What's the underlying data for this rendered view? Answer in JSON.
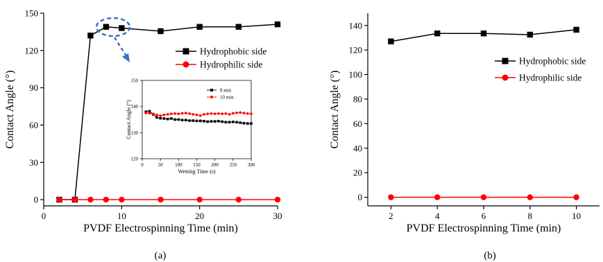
{
  "panel_captions": [
    "(a)",
    "(b)"
  ],
  "colors": {
    "hydrophobic": "#000000",
    "hydrophilic": "#ff0000",
    "annotation": "#3a6fc4"
  },
  "chart_data": [
    {
      "id": "a",
      "type": "line",
      "xlabel": "PVDF Electrospinning Time (min)",
      "ylabel": "Contact Angle (°)",
      "xlim": [
        0,
        30
      ],
      "ylim": [
        -5,
        150
      ],
      "xticks": [
        0,
        10,
        20,
        30
      ],
      "yticks": [
        0,
        30,
        60,
        90,
        120,
        150
      ],
      "grid": false,
      "legend_position": "right",
      "series": [
        {
          "name": "Hydrophobic side",
          "marker": "square",
          "color": "#000000",
          "x": [
            2,
            4,
            6,
            8,
            10,
            15,
            20,
            25,
            30
          ],
          "y": [
            0,
            0,
            132,
            139,
            138,
            135.5,
            139,
            139,
            141
          ]
        },
        {
          "name": "Hydrophilic side",
          "marker": "circle",
          "color": "#ff0000",
          "x": [
            2,
            4,
            6,
            8,
            10,
            15,
            20,
            25,
            30
          ],
          "y": [
            0,
            0,
            0,
            0,
            0,
            0,
            0,
            0,
            0
          ]
        }
      ]
    },
    {
      "id": "a-inset",
      "type": "line",
      "xlabel": "Wetting Time (s)",
      "ylabel": "Contact Angle (°)",
      "xlim": [
        0,
        300
      ],
      "ylim": [
        120,
        150
      ],
      "xticks": [
        0,
        50,
        100,
        150,
        200,
        250,
        300
      ],
      "yticks": [
        120,
        130,
        140,
        150
      ],
      "legend_position": "top-right",
      "series": [
        {
          "name": "8 min",
          "marker": "square",
          "color": "#000000",
          "x": [
            10,
            20,
            30,
            40,
            50,
            60,
            70,
            80,
            90,
            100,
            110,
            120,
            130,
            140,
            150,
            160,
            170,
            180,
            190,
            200,
            210,
            220,
            230,
            240,
            250,
            260,
            270,
            280,
            290,
            300
          ],
          "y": [
            138,
            138.2,
            137,
            135.8,
            135.5,
            135.4,
            135.2,
            135.4,
            135.0,
            135.0,
            134.8,
            134.8,
            134.6,
            134.6,
            134.5,
            134.5,
            134.4,
            134.2,
            134.3,
            134.3,
            134.4,
            134.2,
            134.0,
            134.0,
            134.1,
            134.0,
            133.8,
            133.6,
            133.5,
            133.5
          ]
        },
        {
          "name": "10 min",
          "marker": "circle",
          "color": "#ff0000",
          "x": [
            10,
            20,
            30,
            40,
            50,
            60,
            70,
            80,
            90,
            100,
            110,
            120,
            130,
            140,
            150,
            160,
            170,
            180,
            190,
            200,
            210,
            220,
            230,
            240,
            250,
            260,
            270,
            280,
            290,
            300
          ],
          "y": [
            137.5,
            137.4,
            137.2,
            136.8,
            136.5,
            136.8,
            137.0,
            137.2,
            137.3,
            137.2,
            137.4,
            137.5,
            137.3,
            137.0,
            136.8,
            136.5,
            137.0,
            137.2,
            137.3,
            137.2,
            137.3,
            137.2,
            137.3,
            137.0,
            137.4,
            137.6,
            137.7,
            137.5,
            137.3,
            137.2
          ]
        }
      ]
    },
    {
      "id": "b",
      "type": "line",
      "xlabel": "PVDF Electrospinning Time (min)",
      "ylabel": "Contact Angle (°)",
      "xlim": [
        1,
        11
      ],
      "ylim": [
        -7,
        150
      ],
      "xticks": [
        2,
        4,
        6,
        8,
        10
      ],
      "yticks": [
        0,
        20,
        40,
        60,
        80,
        100,
        120,
        140
      ],
      "grid": false,
      "legend_position": "right",
      "series": [
        {
          "name": "Hydrophobic side",
          "marker": "square",
          "color": "#000000",
          "x": [
            2,
            4,
            6,
            8,
            10
          ],
          "y": [
            127,
            133.5,
            133.5,
            132.5,
            136.5
          ]
        },
        {
          "name": "Hydrophilic side",
          "marker": "circle",
          "color": "#ff0000",
          "x": [
            2,
            4,
            6,
            8,
            10
          ],
          "y": [
            0,
            0,
            0,
            0,
            0
          ]
        }
      ]
    }
  ]
}
